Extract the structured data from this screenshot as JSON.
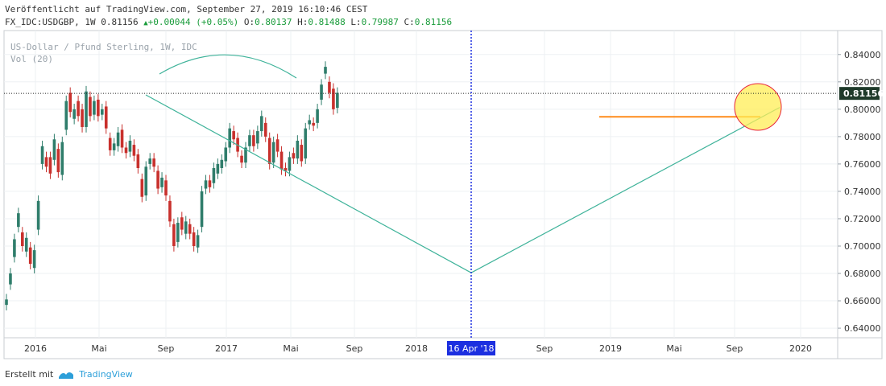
{
  "header": {
    "published": "Veröffentlicht auf TradingView.com, September 27, 2019 16:10:46 CEST",
    "symbol": "FX_IDC:USDGBP, 1W",
    "last": "0.81156",
    "change": "+0.00044 (+0.05%)",
    "o_label": "O:",
    "o": "0.80137",
    "h_label": "H:",
    "h": "0.81488",
    "l_label": "L:",
    "l": "0.79987",
    "c_label": "C:",
    "c": "0.81156"
  },
  "legend": {
    "name": "US-Dollar / Pfund Sterling, 1W, IDC",
    "volume": "Vol (20)"
  },
  "footer": {
    "created_with": "Erstellt mit",
    "brand": "TradingView"
  },
  "colors": {
    "up": "#2f7d6b",
    "down": "#c8302c",
    "trendline": "#3fb39a",
    "support": "#ff8c1a",
    "highlight_fill": "#ffee55",
    "highlight_stroke": "#e8243c",
    "marker": "#1c2fe0"
  },
  "chart_data": {
    "type": "candlestick",
    "x_tick_labels": [
      "2016",
      "Mai",
      "Sep",
      "2017",
      "Mai",
      "Sep",
      "2018",
      "Sep",
      "2019",
      "Mai",
      "Sep",
      "2020"
    ],
    "y_tick_labels": [
      "0.84000",
      "0.82000",
      "0.80000",
      "0.78000",
      "0.76000",
      "0.74000",
      "0.72000",
      "0.70000",
      "0.68000",
      "0.66000",
      "0.64000"
    ],
    "ylim": [
      0.633,
      0.8575
    ],
    "last_price": 0.81156,
    "last_price_label": "0.81156",
    "marker_date_label": "16 Apr '18",
    "closes": [
      [
        0.657,
        0.661
      ],
      [
        0.672,
        0.68
      ],
      [
        0.692,
        0.705
      ],
      [
        0.714,
        0.724
      ],
      [
        0.71,
        0.7
      ],
      [
        0.696,
        0.706
      ],
      [
        0.699,
        0.687
      ],
      [
        0.684,
        0.697
      ],
      [
        0.712,
        0.733
      ],
      [
        0.76,
        0.773
      ],
      [
        0.765,
        0.758
      ],
      [
        0.765,
        0.753
      ],
      [
        0.763,
        0.778
      ],
      [
        0.771,
        0.754
      ],
      [
        0.752,
        0.776
      ],
      [
        0.785,
        0.806
      ],
      [
        0.812,
        0.798
      ],
      [
        0.793,
        0.8
      ],
      [
        0.806,
        0.795
      ],
      [
        0.8,
        0.787
      ],
      [
        0.787,
        0.813
      ],
      [
        0.809,
        0.795
      ],
      [
        0.796,
        0.806
      ],
      [
        0.807,
        0.795
      ],
      [
        0.796,
        0.8
      ],
      [
        0.802,
        0.786
      ],
      [
        0.779,
        0.77
      ],
      [
        0.77,
        0.775
      ],
      [
        0.773,
        0.783
      ],
      [
        0.785,
        0.772
      ],
      [
        0.772,
        0.768
      ],
      [
        0.769,
        0.777
      ],
      [
        0.774,
        0.766
      ],
      [
        0.767,
        0.757
      ],
      [
        0.749,
        0.736
      ],
      [
        0.737,
        0.758
      ],
      [
        0.76,
        0.764
      ],
      [
        0.764,
        0.758
      ],
      [
        0.755,
        0.742
      ],
      [
        0.743,
        0.75
      ],
      [
        0.748,
        0.737
      ],
      [
        0.733,
        0.718
      ],
      [
        0.716,
        0.7
      ],
      [
        0.703,
        0.717
      ],
      [
        0.721,
        0.712
      ],
      [
        0.709,
        0.718
      ],
      [
        0.716,
        0.709
      ],
      [
        0.71,
        0.7
      ],
      [
        0.699,
        0.708
      ],
      [
        0.714,
        0.74
      ],
      [
        0.742,
        0.748
      ],
      [
        0.748,
        0.743
      ],
      [
        0.746,
        0.757
      ],
      [
        0.753,
        0.76
      ],
      [
        0.757,
        0.763
      ],
      [
        0.762,
        0.772
      ],
      [
        0.772,
        0.786
      ],
      [
        0.784,
        0.778
      ],
      [
        0.779,
        0.769
      ],
      [
        0.766,
        0.761
      ],
      [
        0.761,
        0.772
      ],
      [
        0.773,
        0.781
      ],
      [
        0.781,
        0.773
      ],
      [
        0.775,
        0.784
      ],
      [
        0.784,
        0.795
      ],
      [
        0.79,
        0.78
      ],
      [
        0.779,
        0.76
      ],
      [
        0.761,
        0.776
      ],
      [
        0.778,
        0.769
      ],
      [
        0.769,
        0.756
      ],
      [
        0.757,
        0.755
      ],
      [
        0.755,
        0.765
      ],
      [
        0.768,
        0.764
      ],
      [
        0.764,
        0.777
      ],
      [
        0.774,
        0.762
      ],
      [
        0.764,
        0.786
      ],
      [
        0.789,
        0.792
      ],
      [
        0.79,
        0.788
      ],
      [
        0.79,
        0.8
      ],
      [
        0.807,
        0.818
      ],
      [
        0.826,
        0.831
      ],
      [
        0.82,
        0.812
      ],
      [
        0.815,
        0.8
      ],
      [
        0.801,
        0.812
      ]
    ]
  }
}
